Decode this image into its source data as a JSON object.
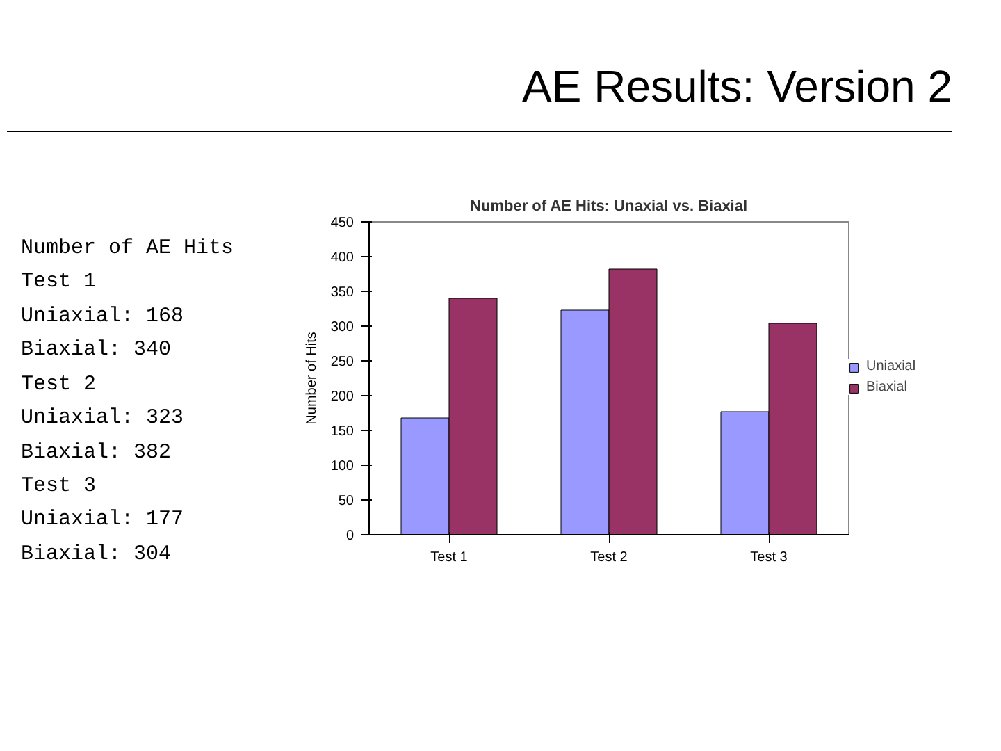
{
  "chart_data": {
    "type": "bar",
    "title": "AE Results: Version 2",
    "subtitle": "Number of AE Hits: Unaxial vs. Biaxial",
    "categories": [
      "Test 1",
      "Test 2",
      "Test 3"
    ],
    "series": [
      {
        "name": "Uniaxial",
        "color": "#9999ff",
        "values": [
          168,
          323,
          177
        ]
      },
      {
        "name": "Biaxial",
        "color": "#993366",
        "values": [
          340,
          382,
          304
        ]
      }
    ],
    "ylabel": "Number of Hits",
    "ylim": [
      0,
      450
    ],
    "yticks": [
      0,
      50,
      100,
      150,
      200,
      250,
      300,
      350,
      400,
      450
    ],
    "grid": false,
    "legend": "right",
    "annotations": [
      "Number of AE Hits",
      "Test 1",
      "Uniaxial: 168",
      "Biaxial: 340",
      "Test 2",
      "Uniaxial: 323",
      "Biaxial: 382",
      "Test 3",
      "Uniaxial: 177",
      "Biaxial: 304"
    ]
  }
}
